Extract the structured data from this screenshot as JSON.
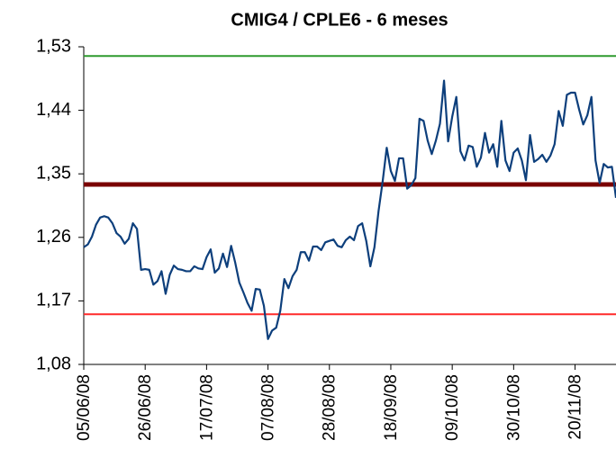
{
  "chart_data": {
    "type": "line",
    "title": "CMIG4 / CPLE6 - 6 meses",
    "categories": [
      "05/06/08",
      null,
      null,
      null,
      null,
      null,
      null,
      null,
      null,
      null,
      null,
      null,
      null,
      null,
      null,
      "26/06/08",
      null,
      null,
      null,
      null,
      null,
      null,
      null,
      null,
      null,
      null,
      null,
      null,
      null,
      null,
      "17/07/08",
      null,
      null,
      null,
      null,
      null,
      null,
      null,
      null,
      null,
      null,
      null,
      null,
      null,
      null,
      "07/08/08",
      null,
      null,
      null,
      null,
      null,
      null,
      null,
      null,
      null,
      null,
      null,
      null,
      null,
      null,
      "28/08/08",
      null,
      null,
      null,
      null,
      null,
      null,
      null,
      null,
      null,
      null,
      null,
      null,
      null,
      null,
      "18/09/08",
      null,
      null,
      null,
      null,
      null,
      null,
      null,
      null,
      null,
      null,
      null,
      null,
      null,
      null,
      "09/10/08",
      null,
      null,
      null,
      null,
      null,
      null,
      null,
      null,
      null,
      null,
      null,
      null,
      null,
      null,
      "30/10/08",
      null,
      null,
      null,
      null,
      null,
      null,
      null,
      null,
      null,
      null,
      null,
      null,
      null,
      null,
      "20/11/08",
      null,
      null,
      null,
      null,
      null,
      null,
      null,
      null,
      null,
      null
    ],
    "series": [
      {
        "color": "#0d3f7c",
        "values": [
          1.246,
          1.25,
          1.261,
          1.278,
          1.288,
          1.29,
          1.288,
          1.28,
          1.266,
          1.261,
          1.251,
          1.258,
          1.28,
          1.272,
          1.214,
          1.215,
          1.214,
          1.193,
          1.198,
          1.212,
          1.18,
          1.207,
          1.22,
          1.215,
          1.214,
          1.212,
          1.212,
          1.219,
          1.216,
          1.215,
          1.232,
          1.243,
          1.21,
          1.216,
          1.237,
          1.218,
          1.248,
          1.224,
          1.196,
          1.182,
          1.167,
          1.156,
          1.187,
          1.186,
          1.163,
          1.116,
          1.128,
          1.132,
          1.156,
          1.201,
          1.188,
          1.205,
          1.214,
          1.239,
          1.239,
          1.227,
          1.247,
          1.247,
          1.242,
          1.253,
          1.255,
          1.257,
          1.248,
          1.246,
          1.256,
          1.261,
          1.256,
          1.276,
          1.28,
          1.255,
          1.219,
          1.246,
          1.297,
          1.339,
          1.387,
          1.354,
          1.34,
          1.372,
          1.372,
          1.329,
          1.334,
          1.344,
          1.428,
          1.425,
          1.397,
          1.378,
          1.397,
          1.421,
          1.482,
          1.396,
          1.431,
          1.459,
          1.382,
          1.369,
          1.39,
          1.388,
          1.36,
          1.373,
          1.408,
          1.38,
          1.392,
          1.36,
          1.425,
          1.369,
          1.354,
          1.38,
          1.386,
          1.369,
          1.341,
          1.405,
          1.367,
          1.371,
          1.377,
          1.367,
          1.376,
          1.392,
          1.439,
          1.418,
          1.462,
          1.465,
          1.465,
          1.441,
          1.42,
          1.433,
          1.459,
          1.369,
          1.337,
          1.364,
          1.359,
          1.36,
          1.316
        ]
      }
    ],
    "reference_lines": [
      {
        "value": 1.517,
        "color": "#2e9a2e"
      },
      {
        "value": 1.335,
        "color": "#7a0000"
      },
      {
        "value": 1.151,
        "color": "#ff2a2a"
      }
    ],
    "ylim": [
      1.08,
      1.53
    ],
    "yticks": [
      {
        "value": 1.08,
        "label": "1,08"
      },
      {
        "value": 1.17,
        "label": "1,17"
      },
      {
        "value": 1.26,
        "label": "1,26"
      },
      {
        "value": 1.35,
        "label": "1,35"
      },
      {
        "value": 1.44,
        "label": "1,44"
      },
      {
        "value": 1.53,
        "label": "1,53"
      }
    ],
    "grid": false
  }
}
